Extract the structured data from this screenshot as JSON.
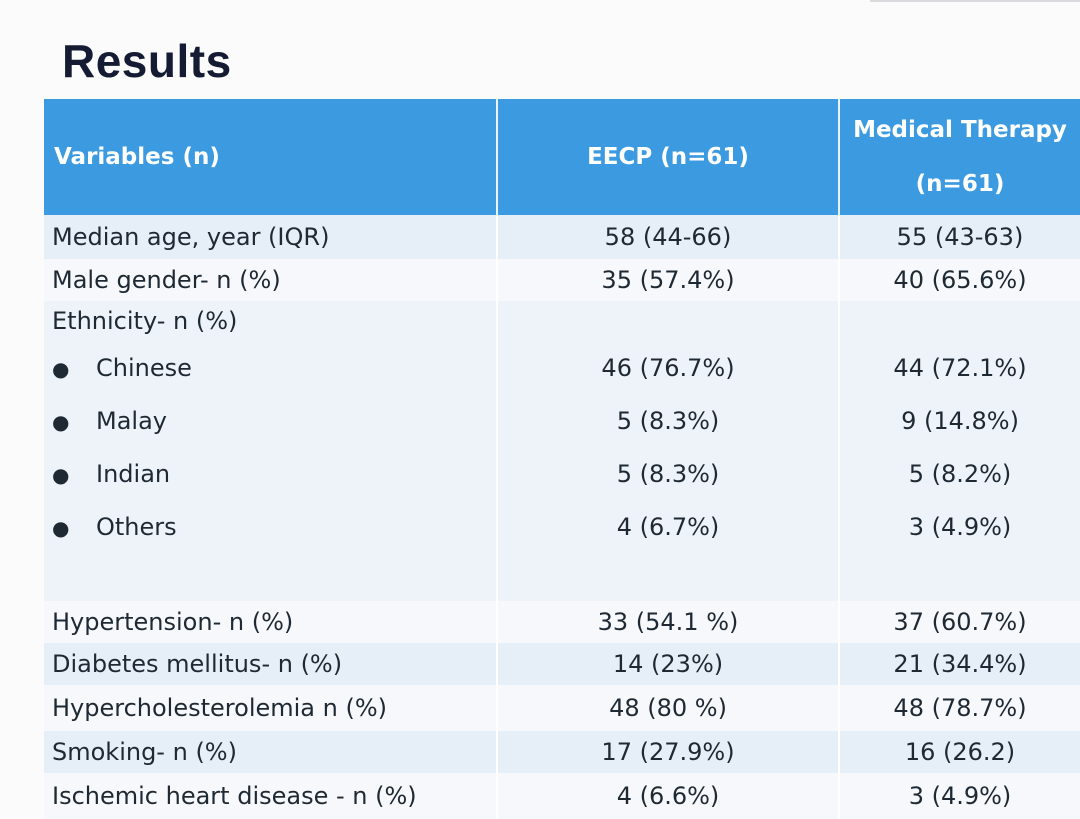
{
  "title": "Results",
  "table": {
    "headers": {
      "variables": "Variables (n)",
      "eecp": "EECP (n=61)",
      "mt_line1": "Medical Therapy",
      "mt_line2": "(n=61)"
    },
    "rows": [
      {
        "label": "Median age, year (IQR)",
        "eecp": "58 (44-66)",
        "mt": "55 (43-63)"
      },
      {
        "label": "Male gender- n (%)",
        "eecp": "35 (57.4%)",
        "mt": "40 (65.6%)"
      },
      {
        "label": "Ethnicity- n (%)",
        "eecp": "",
        "mt": ""
      },
      {
        "label": "Chinese",
        "eecp": "46 (76.7%)",
        "mt": "44 (72.1%)"
      },
      {
        "label": "Malay",
        "eecp": "5 (8.3%)",
        "mt": "9 (14.8%)"
      },
      {
        "label": "Indian",
        "eecp": "5 (8.3%)",
        "mt": "5 (8.2%)"
      },
      {
        "label": "Others",
        "eecp": "4 (6.7%)",
        "mt": "3 (4.9%)"
      },
      {
        "label": "Hypertension- n (%)",
        "eecp": "33 (54.1 %)",
        "mt": "37 (60.7%)"
      },
      {
        "label": "Diabetes mellitus- n (%)",
        "eecp": "14 (23%)",
        "mt": "21 (34.4%)"
      },
      {
        "label": "Hypercholesterolemia n (%)",
        "eecp": "48 (80 %)",
        "mt": "48 (78.7%)"
      },
      {
        "label": "Smoking- n (%)",
        "eecp": "17 (27.9%)",
        "mt": "16 (26.2)"
      },
      {
        "label": "Ischemic heart disease - n (%)",
        "eecp": "4 (6.6%)",
        "mt": "3 (4.9%)"
      }
    ]
  }
}
